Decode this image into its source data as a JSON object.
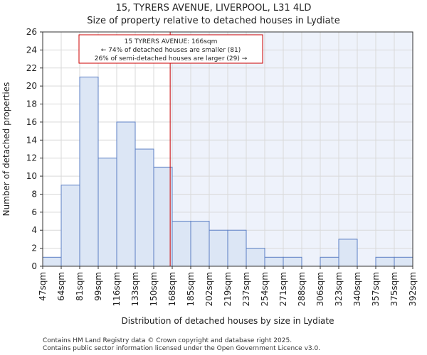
{
  "title": {
    "line1": "15, TYRERS AVENUE, LIVERPOOL, L31 4LD",
    "line2": "Size of property relative to detached houses in Lydiate"
  },
  "chart_data": {
    "type": "bar",
    "bin_edges": [
      47,
      64,
      81,
      99,
      116,
      133,
      150,
      168,
      185,
      202,
      219,
      237,
      254,
      271,
      288,
      306,
      323,
      340,
      357,
      375,
      392
    ],
    "x_tick_labels": [
      "47sqm",
      "64sqm",
      "81sqm",
      "99sqm",
      "116sqm",
      "133sqm",
      "150sqm",
      "168sqm",
      "185sqm",
      "202sqm",
      "219sqm",
      "237sqm",
      "254sqm",
      "271sqm",
      "288sqm",
      "306sqm",
      "323sqm",
      "340sqm",
      "357sqm",
      "375sqm",
      "392sqm"
    ],
    "values": [
      1,
      9,
      21,
      12,
      16,
      13,
      11,
      5,
      5,
      4,
      4,
      2,
      1,
      1,
      0,
      1,
      3,
      0,
      1,
      1
    ],
    "ylim": [
      0,
      26
    ],
    "y_ticks": [
      0,
      2,
      4,
      6,
      8,
      10,
      12,
      14,
      16,
      18,
      20,
      22,
      24,
      26
    ],
    "xlabel": "Distribution of detached houses by size in Lydiate",
    "ylabel": "Number of detached properties",
    "property_size": 166,
    "grid": true,
    "colors": {
      "bar_fill": "#dce6f5",
      "bar_edge": "#5b7fc4",
      "marker_line": "#cc0000",
      "highlight_bg": "#eef2fb",
      "grid": "#d9d9d9"
    },
    "annotation": {
      "line1": "15 TYRERS AVENUE: 166sqm",
      "line2": "← 74% of detached houses are smaller (81)",
      "line3": "26% of semi-detached houses are larger (29) →"
    }
  },
  "footer": {
    "line1": "Contains HM Land Registry data © Crown copyright and database right 2025.",
    "line2": "Contains public sector information licensed under the Open Government Licence v3.0."
  }
}
